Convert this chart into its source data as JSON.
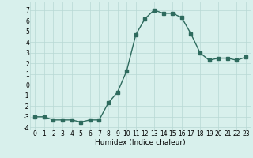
{
  "x": [
    0,
    1,
    2,
    3,
    4,
    5,
    6,
    7,
    8,
    9,
    10,
    11,
    12,
    13,
    14,
    15,
    16,
    17,
    18,
    19,
    20,
    21,
    22,
    23
  ],
  "y": [
    -3.0,
    -3.0,
    -3.3,
    -3.3,
    -3.3,
    -3.5,
    -3.3,
    -3.3,
    -1.7,
    -0.7,
    1.3,
    4.7,
    6.2,
    7.0,
    6.7,
    6.7,
    6.3,
    4.8,
    3.0,
    2.3,
    2.5,
    2.5,
    2.3,
    2.6
  ],
  "line_color": "#2e6b5e",
  "bg_color": "#d8f0ec",
  "grid_color": "#b8d8d4",
  "xlabel": "Humidex (Indice chaleur)",
  "ylim": [
    -4.2,
    7.8
  ],
  "xlim": [
    -0.5,
    23.5
  ],
  "yticks": [
    -4,
    -3,
    -2,
    -1,
    0,
    1,
    2,
    3,
    4,
    5,
    6,
    7
  ],
  "ytick_labels": [
    "-4",
    "-3",
    "-2",
    "-1",
    "0",
    "1",
    "2",
    "3",
    "4",
    "5",
    "6",
    "7"
  ],
  "xticks": [
    0,
    1,
    2,
    3,
    4,
    5,
    6,
    7,
    8,
    9,
    10,
    11,
    12,
    13,
    14,
    15,
    16,
    17,
    18,
    19,
    20,
    21,
    22,
    23
  ],
  "marker": "s",
  "markersize": 2.2,
  "linewidth": 1.0,
  "tick_fontsize": 5.5,
  "xlabel_fontsize": 6.5
}
